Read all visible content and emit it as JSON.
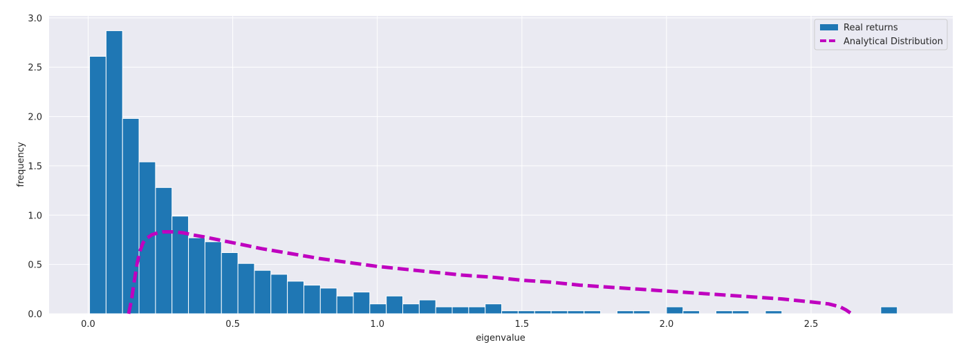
{
  "chart_data": {
    "type": "bar",
    "xlabel": "eigenvalue",
    "ylabel": "frequency",
    "xlim": [
      -0.135,
      2.99
    ],
    "ylim": [
      0,
      3.02
    ],
    "xticks": [
      0.0,
      0.5,
      1.0,
      1.5,
      2.0,
      2.5
    ],
    "xtick_labels": [
      "0.0",
      "0.5",
      "1.0",
      "1.5",
      "2.0",
      "2.5"
    ],
    "yticks": [
      0.0,
      0.5,
      1.0,
      1.5,
      2.0,
      2.5,
      3.0
    ],
    "ytick_labels": [
      "0.0",
      "0.5",
      "1.0",
      "1.5",
      "2.0",
      "2.5",
      "3.0"
    ],
    "grid": true,
    "legend_position": "top-right",
    "bin_width": 0.057,
    "series": [
      {
        "name": "Real returns",
        "kind": "histogram",
        "color": "#1f77b4",
        "bin_start": 0.005,
        "values": [
          2.61,
          2.87,
          1.98,
          1.54,
          1.28,
          0.99,
          0.77,
          0.73,
          0.62,
          0.51,
          0.44,
          0.4,
          0.33,
          0.29,
          0.26,
          0.18,
          0.22,
          0.1,
          0.18,
          0.1,
          0.14,
          0.07,
          0.07,
          0.07,
          0.1,
          0.03,
          0.03,
          0.03,
          0.03,
          0.03,
          0.03,
          0.0,
          0.03,
          0.03,
          0.0,
          0.07,
          0.03,
          0.0,
          0.03,
          0.03,
          0.0,
          0.03,
          0.0,
          0.0,
          0.0,
          0.0,
          0.0,
          0.0,
          0.07
        ]
      },
      {
        "name": "Analytical Distribution",
        "kind": "line",
        "style": "dashed",
        "color": "#bf00bf",
        "x": [
          0.14,
          0.15,
          0.16,
          0.17,
          0.18,
          0.19,
          0.2,
          0.22,
          0.24,
          0.26,
          0.28,
          0.3,
          0.33,
          0.36,
          0.4,
          0.45,
          0.5,
          0.6,
          0.7,
          0.8,
          0.9,
          1.0,
          1.1,
          1.2,
          1.3,
          1.4,
          1.5,
          1.6,
          1.7,
          1.8,
          1.9,
          2.0,
          2.1,
          2.2,
          2.3,
          2.4,
          2.5,
          2.56,
          2.6,
          2.62,
          2.64
        ],
        "y": [
          0.0,
          0.14,
          0.34,
          0.52,
          0.64,
          0.72,
          0.76,
          0.8,
          0.82,
          0.83,
          0.83,
          0.83,
          0.82,
          0.8,
          0.78,
          0.75,
          0.72,
          0.66,
          0.61,
          0.56,
          0.52,
          0.48,
          0.45,
          0.42,
          0.39,
          0.37,
          0.34,
          0.32,
          0.29,
          0.27,
          0.25,
          0.23,
          0.21,
          0.19,
          0.17,
          0.15,
          0.12,
          0.1,
          0.07,
          0.04,
          0.0
        ]
      }
    ]
  }
}
